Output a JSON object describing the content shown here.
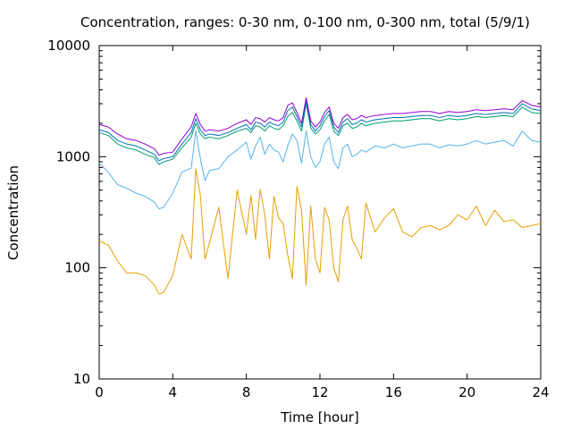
{
  "chart_data": {
    "type": "line",
    "title": "Concentration, ranges: 0-30 nm, 0-100 nm, 0-300 nm, total (5/9/1)",
    "xlabel": "Time [hour]",
    "ylabel": "Concentration",
    "xlim": [
      0,
      24
    ],
    "ylim": [
      10,
      10000
    ],
    "yscale": "log",
    "grid": false,
    "legend": "none",
    "x_ticks": [
      0,
      4,
      8,
      12,
      16,
      20,
      24
    ],
    "x_tick_labels": [
      "0",
      "4",
      "8",
      "12",
      "16",
      "20",
      "24"
    ],
    "y_ticks": [
      10,
      100,
      1000,
      10000
    ],
    "y_tick_labels": [
      "10",
      "100",
      "1000",
      "10000"
    ],
    "x": [
      0,
      0.5,
      1,
      1.5,
      2,
      2.5,
      3,
      3.25,
      3.5,
      4,
      4.5,
      5,
      5.25,
      5.5,
      5.75,
      6,
      6.5,
      7,
      7.5,
      8,
      8.25,
      8.5,
      8.75,
      9,
      9.25,
      9.5,
      9.75,
      10,
      10.25,
      10.5,
      10.75,
      11,
      11.25,
      11.5,
      11.75,
      12,
      12.25,
      12.5,
      12.75,
      13,
      13.25,
      13.5,
      13.75,
      14,
      14.25,
      14.5,
      15,
      15.5,
      16,
      16.5,
      17,
      17.5,
      18,
      18.5,
      19,
      19.5,
      20,
      20.5,
      21,
      21.5,
      22,
      22.5,
      23,
      23.5,
      24
    ],
    "series": [
      {
        "color": "#e69f00",
        "values": [
          175,
          160,
          115,
          90,
          90,
          85,
          70,
          58,
          60,
          85,
          200,
          120,
          780,
          450,
          120,
          170,
          350,
          80,
          500,
          200,
          450,
          180,
          510,
          300,
          120,
          440,
          280,
          250,
          130,
          80,
          540,
          330,
          70,
          360,
          120,
          90,
          350,
          270,
          100,
          75,
          270,
          360,
          180,
          150,
          120,
          380,
          210,
          280,
          340,
          210,
          190,
          230,
          240,
          220,
          240,
          300,
          270,
          360,
          240,
          330,
          260,
          270,
          230,
          240,
          250
        ]
      },
      {
        "color": "#56b4e9",
        "values": [
          880,
          720,
          560,
          520,
          470,
          440,
          390,
          340,
          350,
          470,
          730,
          790,
          1700,
          960,
          610,
          750,
          780,
          1000,
          1150,
          1350,
          950,
          1250,
          1500,
          1050,
          1300,
          1150,
          1100,
          900,
          1250,
          1600,
          1400,
          870,
          1700,
          1000,
          800,
          900,
          1300,
          1500,
          900,
          780,
          1200,
          1300,
          1000,
          1050,
          1150,
          1100,
          1250,
          1200,
          1300,
          1200,
          1250,
          1300,
          1300,
          1200,
          1280,
          1250,
          1300,
          1400,
          1300,
          1350,
          1400,
          1250,
          1700,
          1400,
          1350
        ]
      },
      {
        "color": "#009e73",
        "values": [
          1650,
          1550,
          1300,
          1200,
          1150,
          1050,
          980,
          850,
          900,
          950,
          1200,
          1500,
          2000,
          1600,
          1450,
          1500,
          1450,
          1550,
          1700,
          1800,
          1650,
          1900,
          1850,
          1700,
          1900,
          1800,
          1750,
          1900,
          2300,
          2500,
          2100,
          1700,
          3000,
          1800,
          1600,
          1750,
          2100,
          2400,
          1700,
          1550,
          1900,
          2000,
          1800,
          1850,
          2000,
          1900,
          2000,
          2050,
          2100,
          2100,
          2150,
          2200,
          2200,
          2100,
          2200,
          2150,
          2200,
          2300,
          2250,
          2300,
          2350,
          2300,
          2800,
          2500,
          2450
        ]
      },
      {
        "color": "#0072b2",
        "values": [
          1750,
          1650,
          1400,
          1300,
          1250,
          1150,
          1050,
          920,
          960,
          1000,
          1300,
          1650,
          2200,
          1750,
          1550,
          1600,
          1550,
          1650,
          1800,
          1950,
          1750,
          2050,
          2000,
          1850,
          2050,
          1950,
          1900,
          2050,
          2600,
          2800,
          2300,
          1850,
          3200,
          1950,
          1700,
          1900,
          2300,
          2600,
          1850,
          1650,
          2050,
          2200,
          1950,
          2000,
          2150,
          2050,
          2150,
          2200,
          2250,
          2250,
          2300,
          2350,
          2350,
          2250,
          2350,
          2300,
          2350,
          2450,
          2400,
          2450,
          2500,
          2450,
          3000,
          2700,
          2600
        ]
      },
      {
        "color": "#9400d3",
        "values": [
          1950,
          1850,
          1600,
          1450,
          1400,
          1300,
          1180,
          1030,
          1070,
          1100,
          1450,
          1850,
          2450,
          1950,
          1700,
          1750,
          1700,
          1800,
          2000,
          2150,
          1950,
          2250,
          2200,
          2050,
          2250,
          2150,
          2100,
          2250,
          2900,
          3050,
          2500,
          2000,
          3400,
          2100,
          1850,
          2050,
          2500,
          2800,
          2000,
          1800,
          2250,
          2400,
          2150,
          2200,
          2350,
          2250,
          2350,
          2400,
          2450,
          2450,
          2500,
          2550,
          2550,
          2450,
          2550,
          2500,
          2550,
          2650,
          2600,
          2650,
          2700,
          2650,
          3200,
          2900,
          2800
        ]
      }
    ]
  }
}
